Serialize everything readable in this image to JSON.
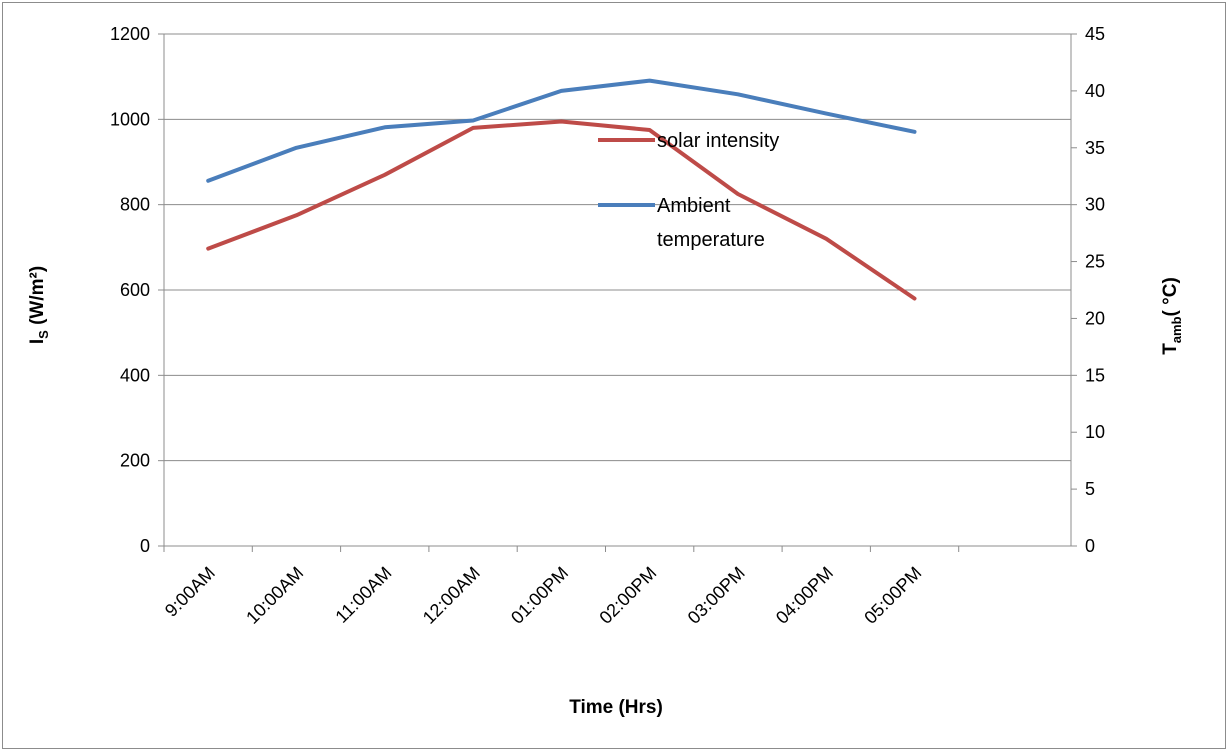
{
  "chart_data": {
    "type": "line",
    "categories": [
      "9:00AM",
      "10:00AM",
      "11:00AM",
      "12:00AM",
      "01:00PM",
      "02:00PM",
      "03:00PM",
      "04:00PM",
      "05:00PM"
    ],
    "xlabel": "Time (Hrs)",
    "ylabel_left": {
      "main": "I",
      "sub": "S",
      "rest": " (W/m²)"
    },
    "ylabel_right": {
      "main": "T",
      "sub": "amb",
      "rest": "( °C)"
    },
    "ylim_left": [
      0,
      1200
    ],
    "yticks_left": [
      "0",
      "200",
      "400",
      "600",
      "800",
      "1000",
      "1200"
    ],
    "ylim_right": [
      0,
      45
    ],
    "yticks_right": [
      "0",
      "5",
      "10",
      "15",
      "20",
      "25",
      "30",
      "35",
      "40",
      "45"
    ],
    "grid": true,
    "legend": {
      "placement": "inside-upper-right"
    },
    "series": [
      {
        "name": "solar intensity",
        "axis": "left",
        "color": "#be4b48",
        "values": [
          697,
          775,
          870,
          980,
          995,
          975,
          825,
          720,
          580
        ]
      },
      {
        "name_lines": [
          "Ambient",
          "temperature"
        ],
        "axis": "right",
        "color": "#4a7ebb",
        "values": [
          32.1,
          35.0,
          36.8,
          37.4,
          40.0,
          40.9,
          39.7,
          38.0,
          36.4
        ]
      }
    ]
  }
}
